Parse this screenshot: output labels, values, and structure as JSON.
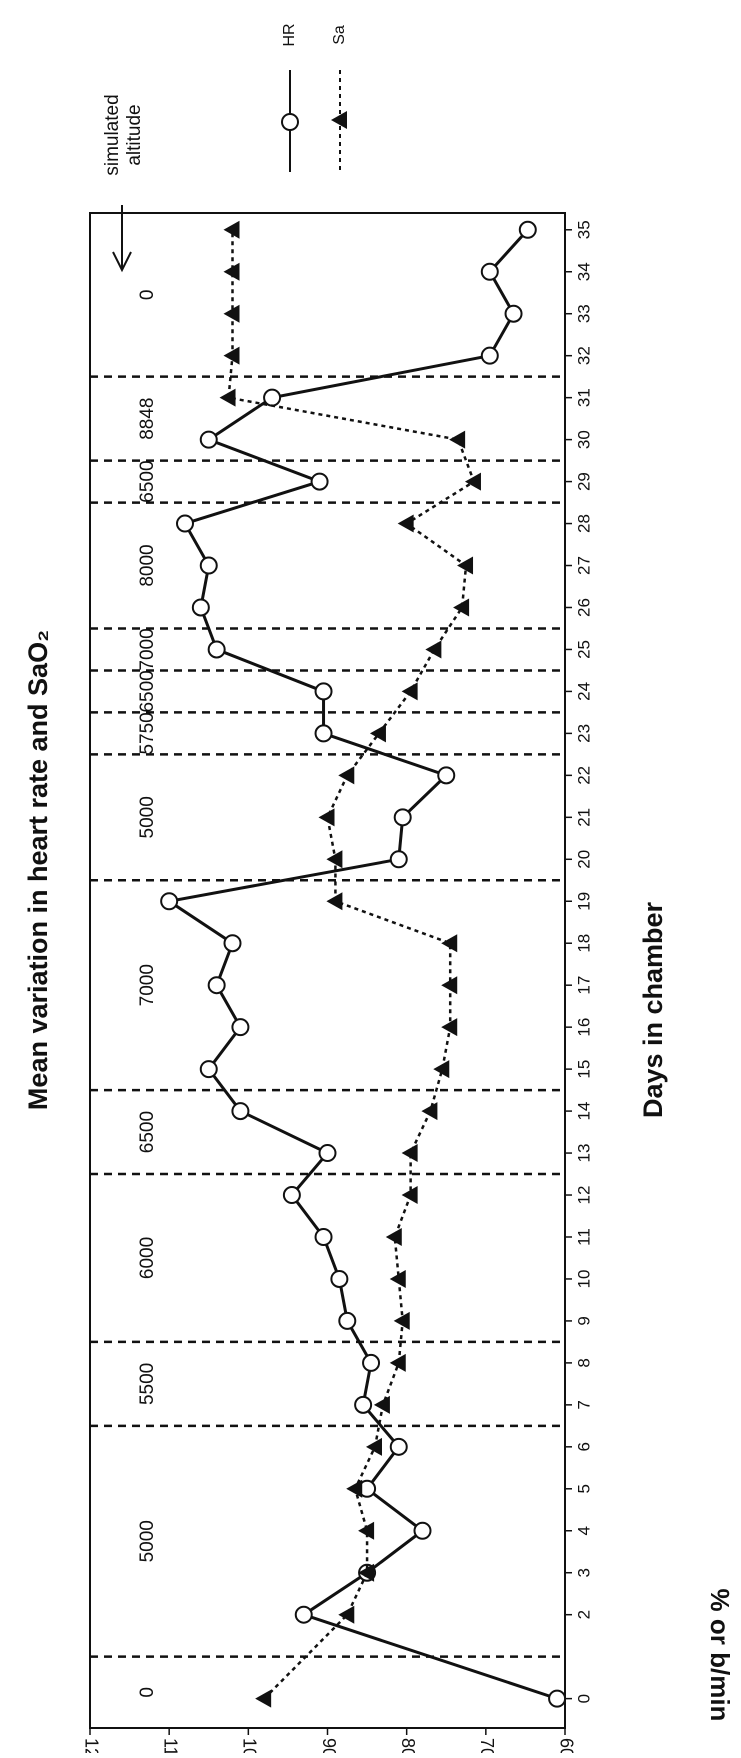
{
  "chart_data": {
    "type": "line",
    "title": "Mean variation in heart rate and SaO₂",
    "xlabel": "Days in chamber",
    "ylabel": "% or b/min",
    "annotation": [
      "simulated",
      "altitude"
    ],
    "x": [
      0,
      2,
      3,
      4,
      5,
      6,
      7,
      8,
      9,
      10,
      11,
      12,
      13,
      14,
      15,
      16,
      17,
      18,
      19,
      20,
      21,
      22,
      23,
      24,
      25,
      26,
      27,
      28,
      29,
      30,
      31,
      32,
      33,
      34,
      35
    ],
    "series": [
      {
        "name": "HR",
        "color": "#111111",
        "marker": "circle",
        "dashed": false,
        "values": [
          61,
          93,
          85,
          78,
          85,
          81,
          85.5,
          84.5,
          87.5,
          88.5,
          90.5,
          94.5,
          90,
          101,
          105,
          101,
          104,
          102,
          110,
          81,
          80.5,
          75,
          90.5,
          90.5,
          104,
          106,
          105,
          108,
          91,
          105,
          97,
          69.5,
          66.5,
          69.5,
          64.7
        ]
      },
      {
        "name": "Sa",
        "color": "#111111",
        "marker": "triangle",
        "dashed": true,
        "values": [
          98,
          87.5,
          85,
          85,
          86.5,
          84,
          83,
          81,
          80.5,
          81,
          81.5,
          79.5,
          79.5,
          77,
          75.5,
          74.5,
          74.5,
          74.5,
          89,
          89,
          90,
          87.5,
          83.5,
          79.5,
          76.5,
          73,
          72.5,
          80,
          71.5,
          73.5,
          102.5,
          102,
          102,
          102,
          102
        ]
      }
    ],
    "phases": [
      {
        "label": "0",
        "end": 1
      },
      {
        "label": "5000",
        "end": 6.5
      },
      {
        "label": "5500",
        "end": 8.5
      },
      {
        "label": "6000",
        "end": 12.5
      },
      {
        "label": "6500",
        "end": 14.5
      },
      {
        "label": "7000",
        "end": 19.5
      },
      {
        "label": "5000",
        "end": 22.5
      },
      {
        "label": "5750",
        "end": 23.5
      },
      {
        "label": "6500",
        "end": 24.5
      },
      {
        "label": "7000",
        "end": 25.5
      },
      {
        "label": "8000",
        "end": 28.5
      },
      {
        "label": "6500",
        "end": 29.5
      },
      {
        "label": "8848",
        "end": 31.5
      },
      {
        "label": "0"
      }
    ],
    "xlim": [
      -0.7,
      35.4
    ],
    "xticks": [
      0,
      2,
      3,
      4,
      5,
      6,
      7,
      8,
      9,
      10,
      11,
      12,
      13,
      14,
      15,
      16,
      17,
      18,
      19,
      20,
      21,
      22,
      23,
      24,
      25,
      26,
      27,
      28,
      29,
      30,
      31,
      32,
      33,
      34,
      35
    ],
    "ylim": [
      60,
      120
    ],
    "yticks": [
      60,
      70,
      80,
      90,
      100,
      110,
      120
    ],
    "grid": false
  }
}
